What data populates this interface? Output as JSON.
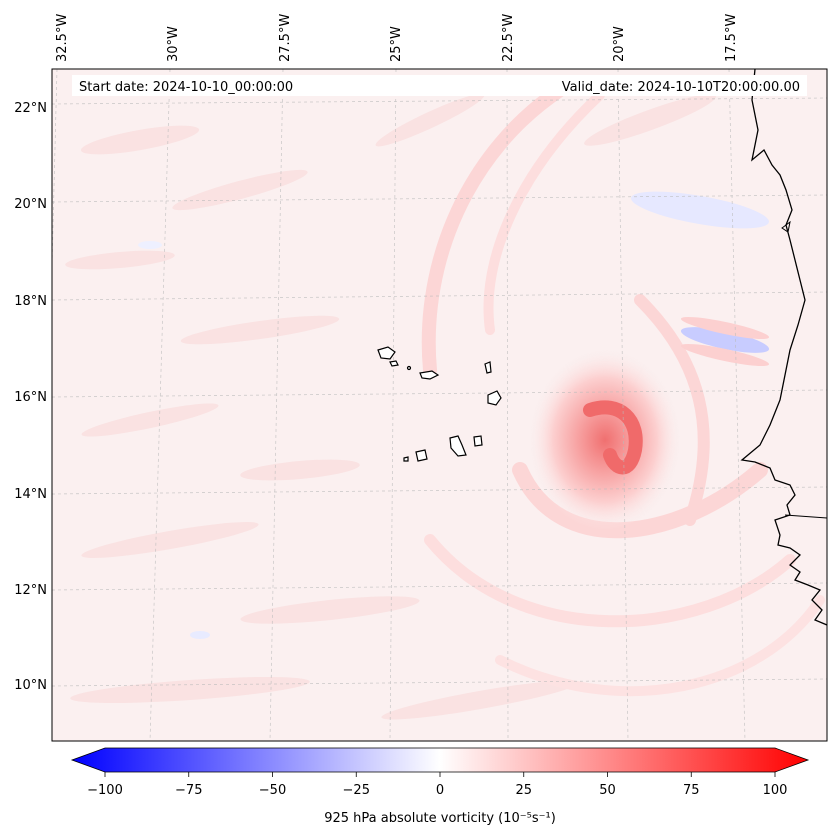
{
  "header": {
    "start_date": "Start date: 2024-10-10_00:00:00",
    "valid_date": "Valid_date: 2024-10-10T20:00:00.00"
  },
  "map": {
    "lon_labels": [
      "32.5°W",
      "30°W",
      "27.5°W",
      "25°W",
      "22.5°W",
      "20°W",
      "17.5°W"
    ],
    "lat_labels": [
      "22°N",
      "20°N",
      "18°N",
      "16°N",
      "14°N",
      "12°N",
      "10°N"
    ],
    "gridlines": true,
    "colors": {
      "background": "#fbf0f0",
      "vortex_core": "#f27878",
      "vortex_mid": "#fbc4c4",
      "band": "#fcdcdc",
      "negative": "#e2e6ff",
      "coast": "#000000"
    }
  },
  "colorbar": {
    "ticks": [
      "−100",
      "−75",
      "−50",
      "−25",
      "0",
      "25",
      "50",
      "75",
      "100"
    ],
    "label": "925 hPa absolute vorticity (10⁻⁵s⁻¹)",
    "min_color": "#0000ff",
    "mid_color": "#ffffff",
    "max_color": "#ff0000"
  }
}
